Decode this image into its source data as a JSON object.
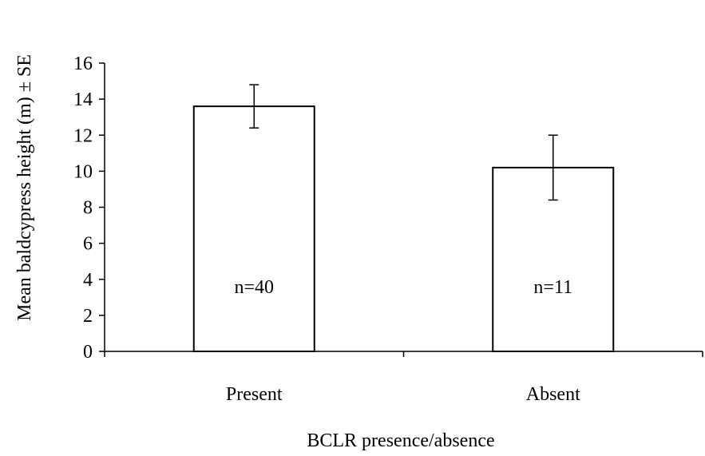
{
  "chart_data": {
    "type": "bar",
    "categories": [
      "Present",
      "Absent"
    ],
    "values": [
      13.6,
      10.2
    ],
    "error": [
      1.2,
      1.8
    ],
    "bar_labels": [
      "n=40",
      "n=11"
    ],
    "xlabel": "BCLR presence/absence",
    "ylabel": "Mean baldcypress height (m) ± SE",
    "ylim": [
      0,
      16
    ],
    "yticks": [
      "0",
      "2",
      "4",
      "6",
      "8",
      "10",
      "12",
      "14",
      "16"
    ],
    "grid": false,
    "legend": "none",
    "colors": {
      "bar_fill": "#ffffff",
      "bar_stroke": "#000000",
      "axis": "#000000"
    }
  }
}
